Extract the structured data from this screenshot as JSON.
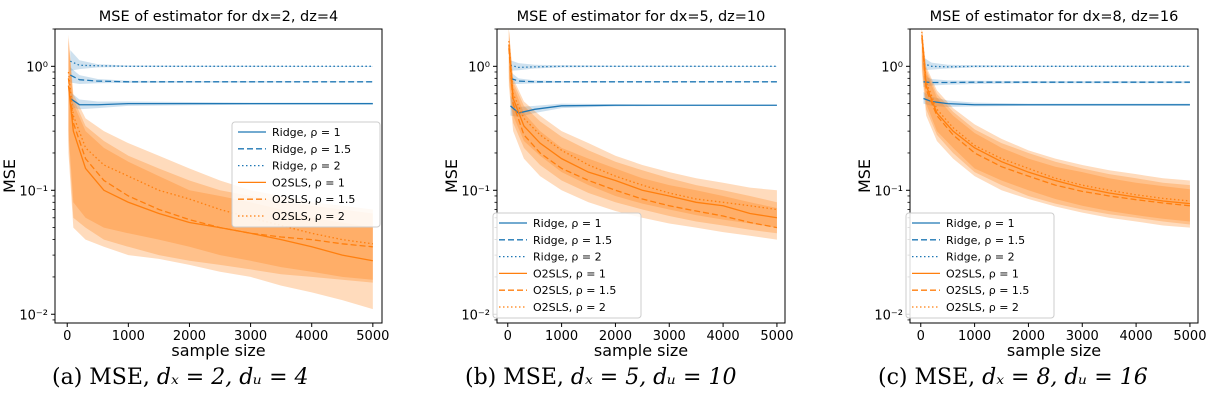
{
  "chart_data": [
    {
      "type": "line",
      "title": "MSE of estimator for dx=2, dz=4",
      "xlabel": "sample size",
      "ylabel": "MSE",
      "yscale": "log",
      "xlim": [
        -200,
        5150
      ],
      "ylim": [
        0.0085,
        2.0
      ],
      "xticks": [
        "0",
        "1000",
        "2000",
        "3000",
        "4000",
        "5000"
      ],
      "yticks": [
        "10⁻²",
        "10⁻¹",
        "10⁰"
      ],
      "legend_position": "right",
      "series": [
        {
          "name": "Ridge, ρ = 1",
          "style": "solid",
          "color": "#1f77b4",
          "x": [
            50,
            200,
            500,
            1000,
            2000,
            3000,
            4000,
            5000
          ],
          "y": [
            0.55,
            0.49,
            0.49,
            0.5,
            0.5,
            0.5,
            0.5,
            0.5
          ],
          "band_low": [
            0.47,
            0.45,
            0.46,
            0.48,
            0.485,
            0.49,
            0.49,
            0.49
          ],
          "band_high": [
            0.62,
            0.54,
            0.52,
            0.52,
            0.515,
            0.51,
            0.51,
            0.51
          ]
        },
        {
          "name": "Ridge, ρ = 1.5",
          "style": "dashed",
          "color": "#1f77b4",
          "x": [
            50,
            200,
            500,
            1000,
            2000,
            3000,
            4000,
            5000
          ],
          "y": [
            0.85,
            0.78,
            0.76,
            0.75,
            0.75,
            0.75,
            0.75,
            0.75
          ],
          "band_low": [
            0.74,
            0.72,
            0.73,
            0.735,
            0.74,
            0.74,
            0.745,
            0.745
          ],
          "band_high": [
            0.98,
            0.85,
            0.79,
            0.765,
            0.76,
            0.76,
            0.755,
            0.755
          ]
        },
        {
          "name": "Ridge, ρ = 2",
          "style": "dotted",
          "color": "#1f77b4",
          "x": [
            50,
            200,
            500,
            1000,
            2000,
            3000,
            4000,
            5000
          ],
          "y": [
            1.1,
            1.02,
            1.01,
            1.0,
            1.0,
            1.0,
            1.0,
            1.0
          ],
          "band_low": [
            0.92,
            0.95,
            0.98,
            0.99,
            0.99,
            0.99,
            0.995,
            0.995
          ],
          "band_high": [
            1.35,
            1.12,
            1.04,
            1.015,
            1.01,
            1.01,
            1.005,
            1.005
          ]
        },
        {
          "name": "O2SLS, ρ = 1",
          "style": "solid",
          "color": "#ff7f0e",
          "x": [
            20,
            100,
            300,
            600,
            1000,
            1500,
            2000,
            2500,
            3000,
            3500,
            4000,
            4500,
            5000
          ],
          "y": [
            0.7,
            0.3,
            0.15,
            0.1,
            0.08,
            0.065,
            0.055,
            0.05,
            0.045,
            0.04,
            0.035,
            0.03,
            0.027
          ],
          "band_low": [
            0.2,
            0.05,
            0.04,
            0.035,
            0.03,
            0.028,
            0.025,
            0.022,
            0.02,
            0.017,
            0.015,
            0.013,
            0.011
          ],
          "band_high": [
            1.6,
            0.5,
            0.3,
            0.22,
            0.17,
            0.13,
            0.1,
            0.09,
            0.08,
            0.07,
            0.06,
            0.055,
            0.05
          ]
        },
        {
          "name": "O2SLS, ρ = 1.5",
          "style": "dashed",
          "color": "#ff7f0e",
          "x": [
            20,
            100,
            300,
            600,
            1000,
            1500,
            2000,
            2500,
            3000,
            3500,
            4000,
            4500,
            5000
          ],
          "y": [
            0.8,
            0.35,
            0.18,
            0.12,
            0.09,
            0.07,
            0.058,
            0.05,
            0.045,
            0.042,
            0.04,
            0.037,
            0.035
          ],
          "band_low": [
            0.25,
            0.06,
            0.05,
            0.04,
            0.035,
            0.03,
            0.027,
            0.025,
            0.023,
            0.021,
            0.02,
            0.019,
            0.018
          ],
          "band_high": [
            1.7,
            0.55,
            0.33,
            0.25,
            0.19,
            0.15,
            0.12,
            0.1,
            0.09,
            0.08,
            0.075,
            0.07,
            0.065
          ]
        },
        {
          "name": "O2SLS, ρ = 2",
          "style": "dotted",
          "color": "#ff7f0e",
          "x": [
            20,
            100,
            300,
            600,
            1000,
            1500,
            2000,
            2500,
            3000,
            3500,
            4000,
            4500,
            5000
          ],
          "y": [
            0.9,
            0.4,
            0.22,
            0.16,
            0.13,
            0.1,
            0.085,
            0.07,
            0.06,
            0.052,
            0.045,
            0.04,
            0.037
          ],
          "band_low": [
            0.3,
            0.08,
            0.06,
            0.05,
            0.045,
            0.04,
            0.035,
            0.03,
            0.027,
            0.024,
            0.022,
            0.02,
            0.019
          ],
          "band_high": [
            1.8,
            0.6,
            0.38,
            0.3,
            0.24,
            0.19,
            0.15,
            0.12,
            0.1,
            0.09,
            0.08,
            0.075,
            0.07
          ]
        }
      ]
    },
    {
      "type": "line",
      "title": "MSE of estimator for dx=5, dz=10",
      "xlabel": "sample size",
      "ylabel": "MSE",
      "yscale": "log",
      "xlim": [
        -200,
        5150
      ],
      "ylim": [
        0.0085,
        2.0
      ],
      "xticks": [
        "0",
        "1000",
        "2000",
        "3000",
        "4000",
        "5000"
      ],
      "yticks": [
        "10⁻²",
        "10⁻¹",
        "10⁰"
      ],
      "legend_position": "lower left",
      "series": [
        {
          "name": "Ridge, ρ = 1",
          "style": "solid",
          "color": "#1f77b4",
          "x": [
            50,
            200,
            500,
            1000,
            2000,
            3000,
            4000,
            5000
          ],
          "y": [
            0.48,
            0.42,
            0.45,
            0.48,
            0.485,
            0.485,
            0.485,
            0.485
          ],
          "band_low": [
            0.4,
            0.39,
            0.42,
            0.46,
            0.475,
            0.48,
            0.48,
            0.48
          ],
          "band_high": [
            0.58,
            0.47,
            0.48,
            0.5,
            0.495,
            0.49,
            0.49,
            0.49
          ]
        },
        {
          "name": "Ridge, ρ = 1.5",
          "style": "dashed",
          "color": "#1f77b4",
          "x": [
            50,
            200,
            500,
            1000,
            2000,
            3000,
            4000,
            5000
          ],
          "y": [
            0.8,
            0.76,
            0.75,
            0.75,
            0.75,
            0.75,
            0.75,
            0.75
          ],
          "band_low": [
            0.72,
            0.72,
            0.73,
            0.74,
            0.745,
            0.745,
            0.745,
            0.745
          ],
          "band_high": [
            0.9,
            0.8,
            0.77,
            0.76,
            0.755,
            0.755,
            0.755,
            0.755
          ]
        },
        {
          "name": "Ridge, ρ = 2",
          "style": "dotted",
          "color": "#1f77b4",
          "x": [
            50,
            200,
            500,
            1000,
            2000,
            3000,
            4000,
            5000
          ],
          "y": [
            1.02,
            0.98,
            0.99,
            1.0,
            1.0,
            1.0,
            1.0,
            1.0
          ],
          "band_low": [
            0.92,
            0.93,
            0.96,
            0.98,
            0.99,
            0.99,
            0.995,
            0.995
          ],
          "band_high": [
            1.12,
            1.06,
            1.03,
            1.02,
            1.01,
            1.01,
            1.005,
            1.005
          ]
        },
        {
          "name": "O2SLS, ρ = 1",
          "style": "solid",
          "color": "#ff7f0e",
          "x": [
            20,
            100,
            300,
            600,
            1000,
            1500,
            2000,
            2500,
            3000,
            3500,
            4000,
            4500,
            5000
          ],
          "y": [
            1.5,
            0.55,
            0.33,
            0.24,
            0.18,
            0.14,
            0.12,
            0.1,
            0.09,
            0.08,
            0.075,
            0.065,
            0.06
          ],
          "band_low": [
            0.8,
            0.35,
            0.22,
            0.16,
            0.12,
            0.095,
            0.08,
            0.07,
            0.062,
            0.056,
            0.052,
            0.048,
            0.045
          ],
          "band_high": [
            2.0,
            0.75,
            0.48,
            0.36,
            0.27,
            0.21,
            0.17,
            0.145,
            0.125,
            0.11,
            0.1,
            0.09,
            0.08
          ]
        },
        {
          "name": "O2SLS, ρ = 1.5",
          "style": "dashed",
          "color": "#ff7f0e",
          "x": [
            20,
            100,
            300,
            600,
            1000,
            1500,
            2000,
            2500,
            3000,
            3500,
            4000,
            4500,
            5000
          ],
          "y": [
            1.4,
            0.5,
            0.28,
            0.2,
            0.15,
            0.12,
            0.1,
            0.085,
            0.075,
            0.068,
            0.062,
            0.055,
            0.05
          ],
          "band_low": [
            0.7,
            0.3,
            0.18,
            0.13,
            0.1,
            0.08,
            0.068,
            0.06,
            0.054,
            0.05,
            0.046,
            0.043,
            0.04
          ],
          "band_high": [
            2.0,
            0.7,
            0.42,
            0.3,
            0.22,
            0.18,
            0.15,
            0.125,
            0.11,
            0.1,
            0.09,
            0.08,
            0.072
          ]
        },
        {
          "name": "O2SLS, ρ = 2",
          "style": "dotted",
          "color": "#ff7f0e",
          "x": [
            20,
            100,
            300,
            600,
            1000,
            1500,
            2000,
            2500,
            3000,
            3500,
            4000,
            4500,
            5000
          ],
          "y": [
            1.6,
            0.6,
            0.38,
            0.28,
            0.21,
            0.16,
            0.13,
            0.11,
            0.095,
            0.085,
            0.08,
            0.075,
            0.07
          ],
          "band_low": [
            0.9,
            0.4,
            0.25,
            0.19,
            0.14,
            0.11,
            0.09,
            0.078,
            0.07,
            0.063,
            0.058,
            0.054,
            0.05
          ],
          "band_high": [
            2.0,
            0.8,
            0.52,
            0.4,
            0.3,
            0.24,
            0.19,
            0.16,
            0.14,
            0.125,
            0.115,
            0.105,
            0.1
          ]
        }
      ]
    },
    {
      "type": "line",
      "title": "MSE of estimator for dx=8, dz=16",
      "xlabel": "sample size",
      "ylabel": "MSE",
      "yscale": "log",
      "xlim": [
        -200,
        5150
      ],
      "ylim": [
        0.0085,
        2.0
      ],
      "xticks": [
        "0",
        "1000",
        "2000",
        "3000",
        "4000",
        "5000"
      ],
      "yticks": [
        "10⁻²",
        "10⁻¹",
        "10⁰"
      ],
      "legend_position": "lower left",
      "series": [
        {
          "name": "Ridge, ρ = 1",
          "style": "solid",
          "color": "#1f77b4",
          "x": [
            50,
            200,
            500,
            1000,
            2000,
            3000,
            4000,
            5000
          ],
          "y": [
            0.55,
            0.52,
            0.5,
            0.49,
            0.49,
            0.49,
            0.49,
            0.49
          ],
          "band_low": [
            0.5,
            0.48,
            0.47,
            0.475,
            0.48,
            0.48,
            0.48,
            0.48
          ],
          "band_high": [
            0.62,
            0.57,
            0.53,
            0.51,
            0.5,
            0.5,
            0.5,
            0.5
          ]
        },
        {
          "name": "Ridge, ρ = 1.5",
          "style": "dashed",
          "color": "#1f77b4",
          "x": [
            50,
            200,
            500,
            1000,
            2000,
            3000,
            4000,
            5000
          ],
          "y": [
            0.75,
            0.74,
            0.74,
            0.745,
            0.745,
            0.745,
            0.745,
            0.745
          ],
          "band_low": [
            0.68,
            0.7,
            0.71,
            0.72,
            0.73,
            0.73,
            0.73,
            0.73
          ],
          "band_high": [
            0.84,
            0.79,
            0.77,
            0.765,
            0.76,
            0.76,
            0.76,
            0.76
          ]
        },
        {
          "name": "Ridge, ρ = 2",
          "style": "dotted",
          "color": "#1f77b4",
          "x": [
            50,
            200,
            500,
            1000,
            2000,
            3000,
            4000,
            5000
          ],
          "y": [
            1.05,
            1.0,
            0.99,
            1.0,
            1.0,
            1.0,
            1.0,
            1.0
          ],
          "band_low": [
            0.93,
            0.94,
            0.96,
            0.98,
            0.99,
            0.99,
            0.99,
            0.99
          ],
          "band_high": [
            1.18,
            1.07,
            1.03,
            1.02,
            1.01,
            1.01,
            1.01,
            1.01
          ]
        },
        {
          "name": "O2SLS, ρ = 1",
          "style": "solid",
          "color": "#ff7f0e",
          "x": [
            20,
            100,
            300,
            600,
            1000,
            1500,
            2000,
            2500,
            3000,
            3500,
            4000,
            4500,
            5000
          ],
          "y": [
            1.8,
            0.7,
            0.42,
            0.3,
            0.22,
            0.17,
            0.14,
            0.12,
            0.105,
            0.095,
            0.088,
            0.082,
            0.078
          ],
          "band_low": [
            1.0,
            0.45,
            0.28,
            0.2,
            0.14,
            0.11,
            0.09,
            0.078,
            0.07,
            0.064,
            0.06,
            0.056,
            0.053
          ],
          "band_high": [
            2.0,
            0.95,
            0.6,
            0.43,
            0.31,
            0.24,
            0.2,
            0.17,
            0.15,
            0.135,
            0.125,
            0.115,
            0.11
          ]
        },
        {
          "name": "O2SLS, ρ = 1.5",
          "style": "dashed",
          "color": "#ff7f0e",
          "x": [
            20,
            100,
            300,
            600,
            1000,
            1500,
            2000,
            2500,
            3000,
            3500,
            4000,
            4500,
            5000
          ],
          "y": [
            1.7,
            0.65,
            0.4,
            0.28,
            0.2,
            0.155,
            0.13,
            0.11,
            0.098,
            0.09,
            0.084,
            0.079,
            0.075
          ],
          "band_low": [
            0.9,
            0.4,
            0.25,
            0.18,
            0.13,
            0.1,
            0.085,
            0.074,
            0.066,
            0.06,
            0.056,
            0.052,
            0.05
          ],
          "band_high": [
            2.0,
            0.9,
            0.56,
            0.4,
            0.29,
            0.22,
            0.18,
            0.155,
            0.14,
            0.125,
            0.115,
            0.108,
            0.102
          ]
        },
        {
          "name": "O2SLS, ρ = 2",
          "style": "dotted",
          "color": "#ff7f0e",
          "x": [
            20,
            100,
            300,
            600,
            1000,
            1500,
            2000,
            2500,
            3000,
            3500,
            4000,
            4500,
            5000
          ],
          "y": [
            1.9,
            0.75,
            0.45,
            0.32,
            0.23,
            0.18,
            0.15,
            0.125,
            0.11,
            0.1,
            0.092,
            0.086,
            0.082
          ],
          "band_low": [
            1.1,
            0.5,
            0.3,
            0.22,
            0.15,
            0.12,
            0.1,
            0.085,
            0.075,
            0.068,
            0.063,
            0.059,
            0.056
          ],
          "band_high": [
            2.0,
            1.0,
            0.64,
            0.46,
            0.34,
            0.26,
            0.21,
            0.18,
            0.16,
            0.145,
            0.135,
            0.125,
            0.12
          ]
        }
      ]
    }
  ],
  "captions": [
    {
      "prefix": "(a) MSE, ",
      "math": "dₓ = 2, dᵤ = 4"
    },
    {
      "prefix": "(b) MSE, ",
      "math": "dₓ = 5, dᵤ = 10"
    },
    {
      "prefix": "(c) MSE, ",
      "math": "dₓ = 8, dᵤ = 16"
    }
  ],
  "colors": {
    "ridge": "#1f77b4",
    "o2sls": "#ff7f0e"
  }
}
